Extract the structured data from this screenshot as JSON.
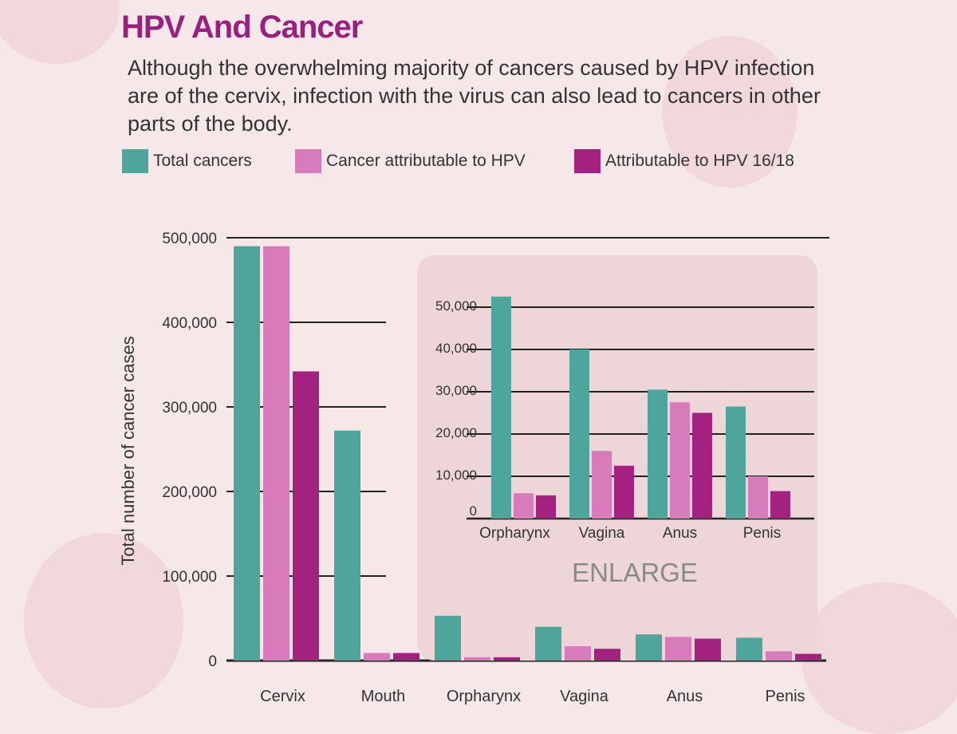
{
  "header": {
    "title": "HPV And Cancer",
    "subtitle": "Although the overwhelming majority of cancers caused by HPV infection are of the cervix, infection with the virus can also lead to cancers in other parts of the body."
  },
  "colors": {
    "total": "#4ea59c",
    "hpv": "#d77bbb",
    "hpv1618": "#a3217f",
    "background": "#f6e7e9",
    "inset_background": "#eed6d8",
    "axis": "#222222"
  },
  "chart_data": [
    {
      "type": "bar",
      "title": "",
      "ylabel": "Total number of cancer cases",
      "xlabel": "",
      "categories": [
        "Cervix",
        "Mouth",
        "Orpharynx",
        "Vagina",
        "Anus",
        "Penis"
      ],
      "series": [
        {
          "name": "Total cancers",
          "values": [
            490000,
            272000,
            53000,
            40000,
            31000,
            27000
          ]
        },
        {
          "name": "Cancer attributable to HPV",
          "values": [
            490000,
            9000,
            4000,
            17000,
            28000,
            11000
          ]
        },
        {
          "name": "Attributable to HPV 16/18",
          "values": [
            342000,
            9000,
            4000,
            14000,
            26000,
            8000
          ]
        }
      ],
      "ylim": [
        0,
        500000
      ],
      "yticks": [
        0,
        100000,
        200000,
        300000,
        400000,
        500000
      ],
      "ytick_labels": [
        "0",
        "100,000",
        "200,000",
        "300,000",
        "400,000",
        "500,000"
      ],
      "grid": true,
      "legend": "top"
    },
    {
      "type": "bar",
      "title": "",
      "label": "ENLARGE",
      "categories": [
        "Orpharynx",
        "Vagina",
        "Anus",
        "Penis"
      ],
      "series": [
        {
          "name": "Total cancers",
          "values": [
            52500,
            40000,
            30500,
            26500
          ]
        },
        {
          "name": "Cancer attributable to HPV",
          "values": [
            6000,
            16000,
            27500,
            10000
          ]
        },
        {
          "name": "Attributable to HPV 16/18",
          "values": [
            5500,
            12500,
            25000,
            6500
          ]
        }
      ],
      "ylim": [
        0,
        50000
      ],
      "yticks": [
        0,
        10000,
        20000,
        30000,
        40000,
        50000
      ],
      "ytick_labels": [
        "0",
        "10,000",
        "20,000",
        "30,000",
        "40,000",
        "50,000"
      ],
      "grid": true
    }
  ]
}
